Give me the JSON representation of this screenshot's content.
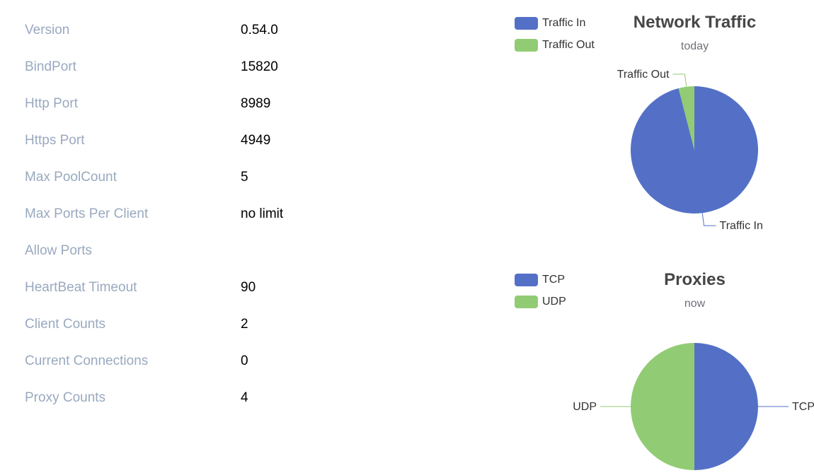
{
  "server_info": [
    {
      "label": "Version",
      "value": "0.54.0"
    },
    {
      "label": "BindPort",
      "value": "15820"
    },
    {
      "label": "Http Port",
      "value": "8989"
    },
    {
      "label": "Https Port",
      "value": "4949"
    },
    {
      "label": "Max PoolCount",
      "value": "5"
    },
    {
      "label": "Max Ports Per Client",
      "value": "no limit"
    },
    {
      "label": "Allow Ports",
      "value": ""
    },
    {
      "label": "HeartBeat Timeout",
      "value": "90"
    },
    {
      "label": "Client Counts",
      "value": "2"
    },
    {
      "label": "Current Connections",
      "value": "0"
    },
    {
      "label": "Proxy Counts",
      "value": "4"
    }
  ],
  "colors": {
    "blue": "#5470c6",
    "green": "#91cc75",
    "label_gray": "#99a9bf"
  },
  "chart_data": [
    {
      "type": "pie",
      "title": "Network Traffic",
      "subtitle": "today",
      "categories": [
        "Traffic In",
        "Traffic Out"
      ],
      "values": [
        96,
        4
      ],
      "colors": [
        "#5470c6",
        "#91cc75"
      ],
      "legend_position": "top-left"
    },
    {
      "type": "pie",
      "title": "Proxies",
      "subtitle": "now",
      "categories": [
        "TCP",
        "UDP"
      ],
      "values": [
        2,
        2
      ],
      "colors": [
        "#5470c6",
        "#91cc75"
      ],
      "legend_position": "top-left"
    }
  ]
}
